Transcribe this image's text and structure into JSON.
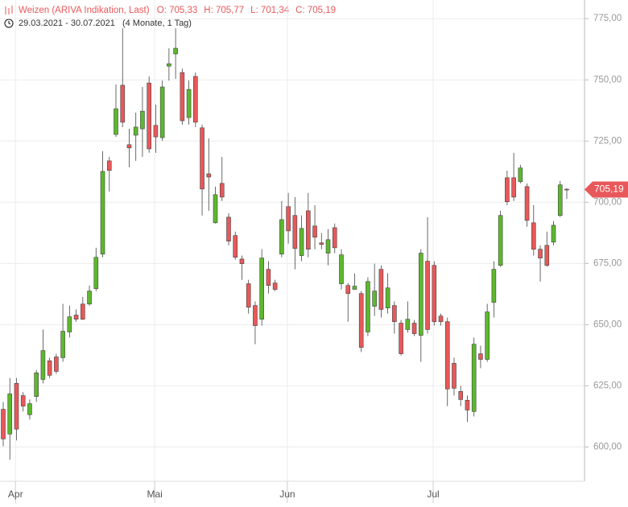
{
  "chart_data": {
    "type": "candlestick",
    "title": "Weizen (ARIVA Indikation, Last)",
    "ohlc_labels": [
      "O: 705,33",
      "H: 705,77",
      "L: 701,34",
      "C: 705,19"
    ],
    "subtitle": "29.03.2021 - 30.07.2021",
    "period": "(4 Monate, 1 Tag)",
    "last_label": "705,19",
    "up_color": "#5cb82c",
    "down_color": "#e8585a",
    "grid": true,
    "ylim": [
      586,
      780
    ],
    "yticks": [
      {
        "value": 600,
        "label": "600,00"
      },
      {
        "value": 625,
        "label": "625,00"
      },
      {
        "value": 650,
        "label": "650,00"
      },
      {
        "value": 675,
        "label": "675,00"
      },
      {
        "value": 700,
        "label": "700,00"
      },
      {
        "value": 725,
        "label": "725,00"
      },
      {
        "value": 750,
        "label": "750,00"
      },
      {
        "value": 775,
        "label": "775,00"
      }
    ],
    "categories": [
      null,
      "Apr",
      null,
      null,
      null,
      null,
      null,
      null,
      null,
      null,
      null,
      null,
      null,
      null,
      null,
      null,
      null,
      null,
      null,
      null,
      null,
      null,
      "Mai",
      null,
      null,
      null,
      null,
      null,
      null,
      null,
      null,
      null,
      null,
      null,
      null,
      null,
      null,
      null,
      null,
      null,
      null,
      null,
      "Jun",
      null,
      null,
      null,
      null,
      null,
      null,
      null,
      null,
      null,
      null,
      null,
      null,
      null,
      null,
      null,
      null,
      null,
      null,
      null,
      null,
      null,
      "Jul",
      null,
      null,
      null,
      null,
      null,
      null,
      null,
      null,
      null,
      null,
      null,
      null,
      null,
      null,
      null,
      null,
      null,
      null,
      null,
      null,
      null
    ],
    "open": [
      615.4,
      605.3,
      626.0,
      621.0,
      613.2,
      620.6,
      627.6,
      635.2,
      636.8,
      636.5,
      647.0,
      653.9,
      658.4,
      658.4,
      664.7,
      678.8,
      716.9,
      727.7,
      747.8,
      723.5,
      727.4,
      730.0,
      748.7,
      731.4,
      726.4,
      755.6,
      760.6,
      753.0,
      734.6,
      751.4,
      730.4,
      711.6,
      691.6,
      707.7,
      693.9,
      686.4,
      676.8,
      666.7,
      657.8,
      652.2,
      672.6,
      667.0,
      678.8,
      698.2,
      694.6,
      678.2,
      696.5,
      690.3,
      683.4,
      679.2,
      689.6,
      666.7,
      666.0,
      664.4,
      662.7,
      647.0,
      657.5,
      672.6,
      656.8,
      657.8,
      650.6,
      648.0,
      650.6,
      645.6,
      675.9,
      674.2,
      653.5,
      651.2,
      634.2,
      622.7,
      619.1,
      614.5,
      638.1,
      635.8,
      659.1,
      674.2,
      710.0,
      710.0,
      708.4,
      706.4,
      691.6,
      680.8,
      682.4,
      683.7,
      694.6,
      705.33
    ],
    "high": [
      618.4,
      628.2,
      628.2,
      622.4,
      619.4,
      631.5,
      648.0,
      636.5,
      638.1,
      658.5,
      657.8,
      656.2,
      661.3,
      666.0,
      681.4,
      720.8,
      718.5,
      748.1,
      771.1,
      730.0,
      736.6,
      747.1,
      751.4,
      739.9,
      749.7,
      762.9,
      771.1,
      754.6,
      749.7,
      753.0,
      731.7,
      726.1,
      706.4,
      718.5,
      695.5,
      688.0,
      678.2,
      668.3,
      659.5,
      680.8,
      675.9,
      668.3,
      700.5,
      703.8,
      702.1,
      694.6,
      703.8,
      698.8,
      687.4,
      689.0,
      691.3,
      680.8,
      667.0,
      670.9,
      663.7,
      669.3,
      674.9,
      674.2,
      671.0,
      659.5,
      651.9,
      659.5,
      651.9,
      680.8,
      693.9,
      675.9,
      654.5,
      652.9,
      636.5,
      625.0,
      621.0,
      644.7,
      641.4,
      658.5,
      675.9,
      696.5,
      712.9,
      720.2,
      715.3,
      707.7,
      698.8,
      682.4,
      688.0,
      692.3,
      708.7,
      705.77
    ],
    "low": [
      600.3,
      594.8,
      602.7,
      614.5,
      611.2,
      618.4,
      626.0,
      628.2,
      629.9,
      634.8,
      644.7,
      651.2,
      651.9,
      657.8,
      663.7,
      677.5,
      704.4,
      726.7,
      730.7,
      714.3,
      716.9,
      718.5,
      720.2,
      720.2,
      725.1,
      749.7,
      750.4,
      731.7,
      731.7,
      730.7,
      694.6,
      696.5,
      691.3,
      700.5,
      682.4,
      676.5,
      668.3,
      654.5,
      642.0,
      649.6,
      662.7,
      663.7,
      677.5,
      683.1,
      672.6,
      675.9,
      677.5,
      680.8,
      680.8,
      674.2,
      679.2,
      664.4,
      651.2,
      664.4,
      638.8,
      645.3,
      653.5,
      652.9,
      654.5,
      646.3,
      637.4,
      646.7,
      645.3,
      634.8,
      646.3,
      649.6,
      649.6,
      616.7,
      621.0,
      616.7,
      610.2,
      612.5,
      632.2,
      634.8,
      652.9,
      673.6,
      698.8,
      700.5,
      707.7,
      690.0,
      678.2,
      667.6,
      673.6,
      682.4,
      693.9,
      701.34
    ],
    "close": [
      603.3,
      621.7,
      607.3,
      616.7,
      617.7,
      630.3,
      639.4,
      629.3,
      630.9,
      647.3,
      653.2,
      652.2,
      652.2,
      663.7,
      677.5,
      712.6,
      713.0,
      738.2,
      732.7,
      722.2,
      730.7,
      737.2,
      721.8,
      726.7,
      747.1,
      756.6,
      762.9,
      733.3,
      746.1,
      732.7,
      705.4,
      710.3,
      703.1,
      702.1,
      684.1,
      677.5,
      674.9,
      657.1,
      649.6,
      677.2,
      666.0,
      664.4,
      692.9,
      688.3,
      681.1,
      689.3,
      680.8,
      685.7,
      682.8,
      684.7,
      681.4,
      678.5,
      662.7,
      665.7,
      640.7,
      667.6,
      663.7,
      656.2,
      665.0,
      651.2,
      638.1,
      652.2,
      646.3,
      679.2,
      648.0,
      651.2,
      651.2,
      623.7,
      624.0,
      619.4,
      615.1,
      642.0,
      635.8,
      655.2,
      672.6,
      694.6,
      700.2,
      702.1,
      714.0,
      692.6,
      680.8,
      677.2,
      674.2,
      690.6,
      707.1,
      705.19
    ]
  }
}
